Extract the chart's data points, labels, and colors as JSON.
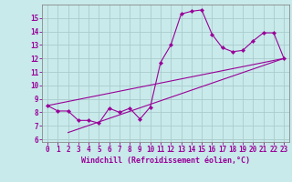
{
  "title": "",
  "xlabel": "Windchill (Refroidissement éolien,°C)",
  "bg_color": "#c8eaea",
  "line_color": "#990099",
  "grid_color": "#aacccc",
  "xlim": [
    -0.5,
    23.5
  ],
  "ylim": [
    5.8,
    16.0
  ],
  "xticks": [
    0,
    1,
    2,
    3,
    4,
    5,
    6,
    7,
    8,
    9,
    10,
    11,
    12,
    13,
    14,
    15,
    16,
    17,
    18,
    19,
    20,
    21,
    22,
    23
  ],
  "yticks": [
    6,
    7,
    8,
    9,
    10,
    11,
    12,
    13,
    14,
    15
  ],
  "series1_x": [
    0,
    1,
    2,
    3,
    4,
    5,
    6,
    7,
    8,
    9,
    10,
    11,
    12,
    13,
    14,
    15,
    16,
    17,
    18,
    19,
    20,
    21,
    22,
    23
  ],
  "series1_y": [
    8.5,
    8.1,
    8.1,
    7.4,
    7.4,
    7.2,
    8.3,
    8.0,
    8.3,
    7.5,
    8.4,
    11.7,
    13.0,
    15.3,
    15.5,
    15.6,
    13.8,
    12.8,
    12.5,
    12.6,
    13.3,
    13.9,
    13.9,
    12.0
  ],
  "series2_x": [
    0,
    23
  ],
  "series2_y": [
    8.5,
    12.0
  ],
  "series3_x": [
    2,
    23
  ],
  "series3_y": [
    6.5,
    12.0
  ],
  "tick_fontsize": 5.5,
  "label_fontsize": 6.0
}
